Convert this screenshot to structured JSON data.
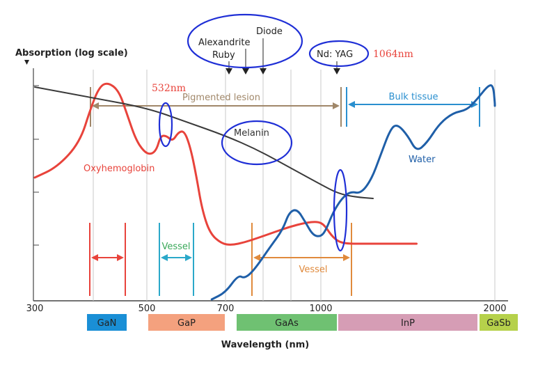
{
  "chart_data": {
    "type": "line",
    "title": "",
    "ylabel": "Absorption (log scale)",
    "xlabel": "Wavelength (nm)",
    "x_ticks": [
      300,
      500,
      700,
      1000,
      2000
    ],
    "x_scale": "piecewise",
    "grid_x": [
      500,
      700,
      800,
      900,
      1000,
      2000
    ],
    "series": [
      {
        "name": "Oxyhemoglobin",
        "color": "#e8433b",
        "points": [
          [
            300,
            255
          ],
          [
            340,
            240
          ],
          [
            380,
            205
          ],
          [
            400,
            155
          ],
          [
            415,
            125
          ],
          [
            430,
            118
          ],
          [
            450,
            130
          ],
          [
            465,
            165
          ],
          [
            480,
            200
          ],
          [
            495,
            218
          ],
          [
            510,
            222
          ],
          [
            525,
            215
          ],
          [
            535,
            195
          ],
          [
            550,
            195
          ],
          [
            565,
            203
          ],
          [
            580,
            190
          ],
          [
            595,
            188
          ],
          [
            610,
            210
          ],
          [
            625,
            250
          ],
          [
            640,
            300
          ],
          [
            660,
            335
          ],
          [
            690,
            350
          ],
          [
            720,
            352
          ],
          [
            760,
            348
          ],
          [
            800,
            342
          ],
          [
            850,
            334
          ],
          [
            900,
            326
          ],
          [
            950,
            320
          ],
          [
            990,
            318
          ],
          [
            1020,
            323
          ],
          [
            1060,
            338
          ],
          [
            1100,
            347
          ],
          [
            1150,
            350
          ],
          [
            1250,
            350
          ],
          [
            1350,
            350
          ],
          [
            1550,
            350
          ]
        ]
      },
      {
        "name": "Melanin",
        "color": "#3a3a3a",
        "points": [
          [
            300,
            125
          ],
          [
            400,
            140
          ],
          [
            500,
            155
          ],
          [
            600,
            175
          ],
          [
            700,
            195
          ],
          [
            800,
            215
          ],
          [
            900,
            240
          ],
          [
            1000,
            265
          ],
          [
            1100,
            278
          ],
          [
            1200,
            283
          ],
          [
            1300,
            285
          ]
        ]
      },
      {
        "name": "Water",
        "color": "#1f5fa8",
        "points": [
          [
            665,
            430
          ],
          [
            700,
            420
          ],
          [
            740,
            395
          ],
          [
            760,
            400
          ],
          [
            790,
            388
          ],
          [
            840,
            355
          ],
          [
            880,
            330
          ],
          [
            900,
            305
          ],
          [
            925,
            300
          ],
          [
            950,
            318
          ],
          [
            975,
            338
          ],
          [
            1000,
            340
          ],
          [
            1030,
            330
          ],
          [
            1070,
            305
          ],
          [
            1120,
            285
          ],
          [
            1170,
            275
          ],
          [
            1230,
            278
          ],
          [
            1290,
            258
          ],
          [
            1340,
            225
          ],
          [
            1400,
            185
          ],
          [
            1440,
            178
          ],
          [
            1500,
            195
          ],
          [
            1550,
            218
          ],
          [
            1610,
            205
          ],
          [
            1680,
            178
          ],
          [
            1760,
            162
          ],
          [
            1840,
            158
          ],
          [
            1900,
            142
          ],
          [
            1960,
            123
          ],
          [
            1990,
            122
          ],
          [
            2030,
            148
          ],
          [
            2060,
            152
          ]
        ]
      }
    ],
    "annotations": {
      "bulk_tissue": "Bulk tissue",
      "pigmented_lesion": "Pigmented lesion",
      "water": "Water",
      "melanin": "Melanin",
      "oxyhemoglobin": "Oxyhemoglobin",
      "vessel_green": "Vessel",
      "vessel_orange": "Vessel",
      "laser_alexandrite": "Alexandrite",
      "laser_ruby": "Ruby",
      "laser_diode": "Diode",
      "laser_ndyag": "Nd: YAG",
      "note_532": "532nm",
      "note_1064": "1064nm"
    },
    "material_bands": [
      {
        "label": "GaN",
        "color": "#1a8fd6"
      },
      {
        "label": "GaP",
        "color": "#f4a17e"
      },
      {
        "label": "GaAs",
        "color": "#6fc172"
      },
      {
        "label": "InP",
        "color": "#d69db5"
      },
      {
        "label": "GaSb",
        "color": "#b6d14b"
      }
    ],
    "colors": {
      "grid": "#c8c8c8",
      "axis": "#444444",
      "bracket_brown": "#a08769",
      "bracket_blue": "#2a8fcf",
      "vessel_green": "#2aa8c9",
      "vessel_orange": "#e08a3c",
      "highlight_ellipse": "#1f2fd6",
      "note_red": "#e8433b"
    }
  }
}
